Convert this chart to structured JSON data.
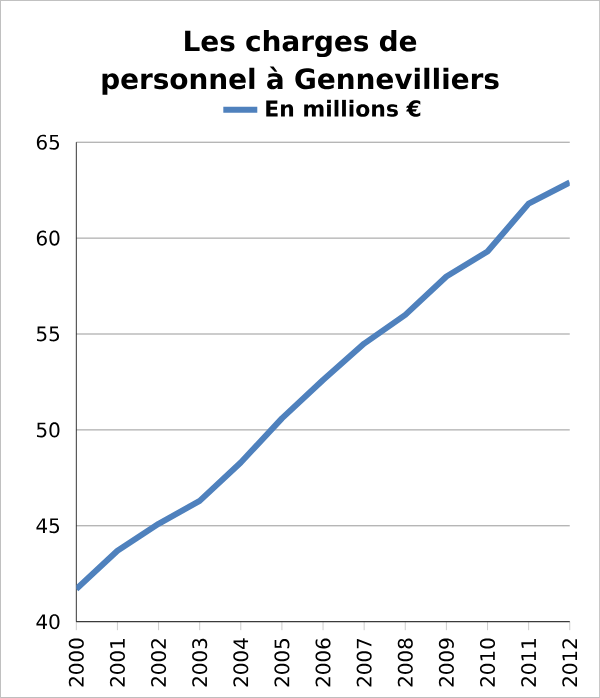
{
  "chart_data": {
    "type": "line",
    "title": "Les charges de personnel à Gennevilliers",
    "categories": [
      "2000",
      "2001",
      "2002",
      "2003",
      "2004",
      "2005",
      "2006",
      "2007",
      "2008",
      "2009",
      "2010",
      "2011",
      "2012"
    ],
    "series": [
      {
        "name": "En millions €",
        "color": "#4f81bd",
        "values": [
          41.7,
          43.7,
          45.1,
          46.3,
          48.3,
          50.6,
          52.6,
          54.5,
          56.0,
          58.0,
          59.3,
          61.8,
          62.9
        ]
      }
    ],
    "ylim": [
      40,
      65
    ],
    "yticks": [
      40,
      45,
      50,
      55,
      60,
      65
    ],
    "grid": "y",
    "legend": "top",
    "marker": "none"
  }
}
